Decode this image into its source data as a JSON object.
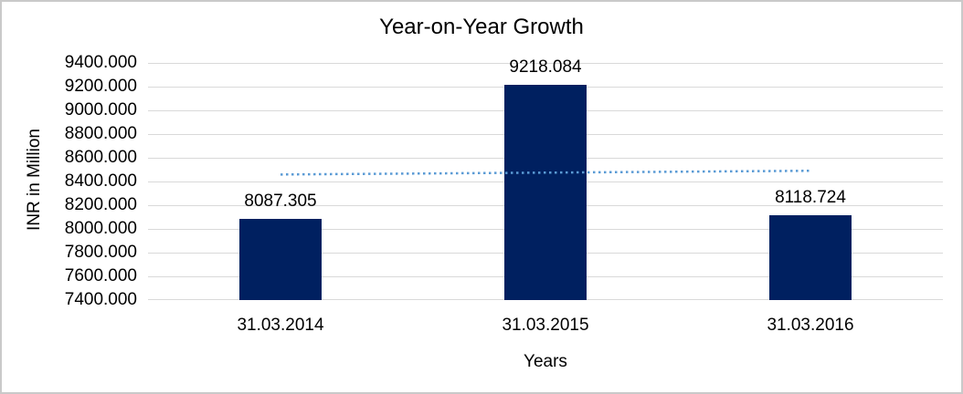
{
  "window": {
    "background": "#FFFFFF",
    "border_color": "#C9C9C9"
  },
  "chart_data": {
    "type": "bar",
    "title": "Year-on-Year Growth",
    "xlabel": "Years",
    "ylabel": "INR in Million",
    "categories": [
      "31.03.2014",
      "31.03.2015",
      "31.03.2016"
    ],
    "values": [
      8087.305,
      9218.084,
      8118.724
    ],
    "data_labels": [
      "8087.305",
      "9218.084",
      "8118.724"
    ],
    "ylim": [
      7400,
      9400
    ],
    "ytick_step": 200,
    "ytick_decimals": 3,
    "grid": "horizontal",
    "legend": "none",
    "bar_color": "#002060",
    "gridline_color": "#D9D9D9",
    "text_color": "#000000",
    "trendline": {
      "type": "linear",
      "line_style": "dotted",
      "color": "#5B9BD5"
    }
  }
}
